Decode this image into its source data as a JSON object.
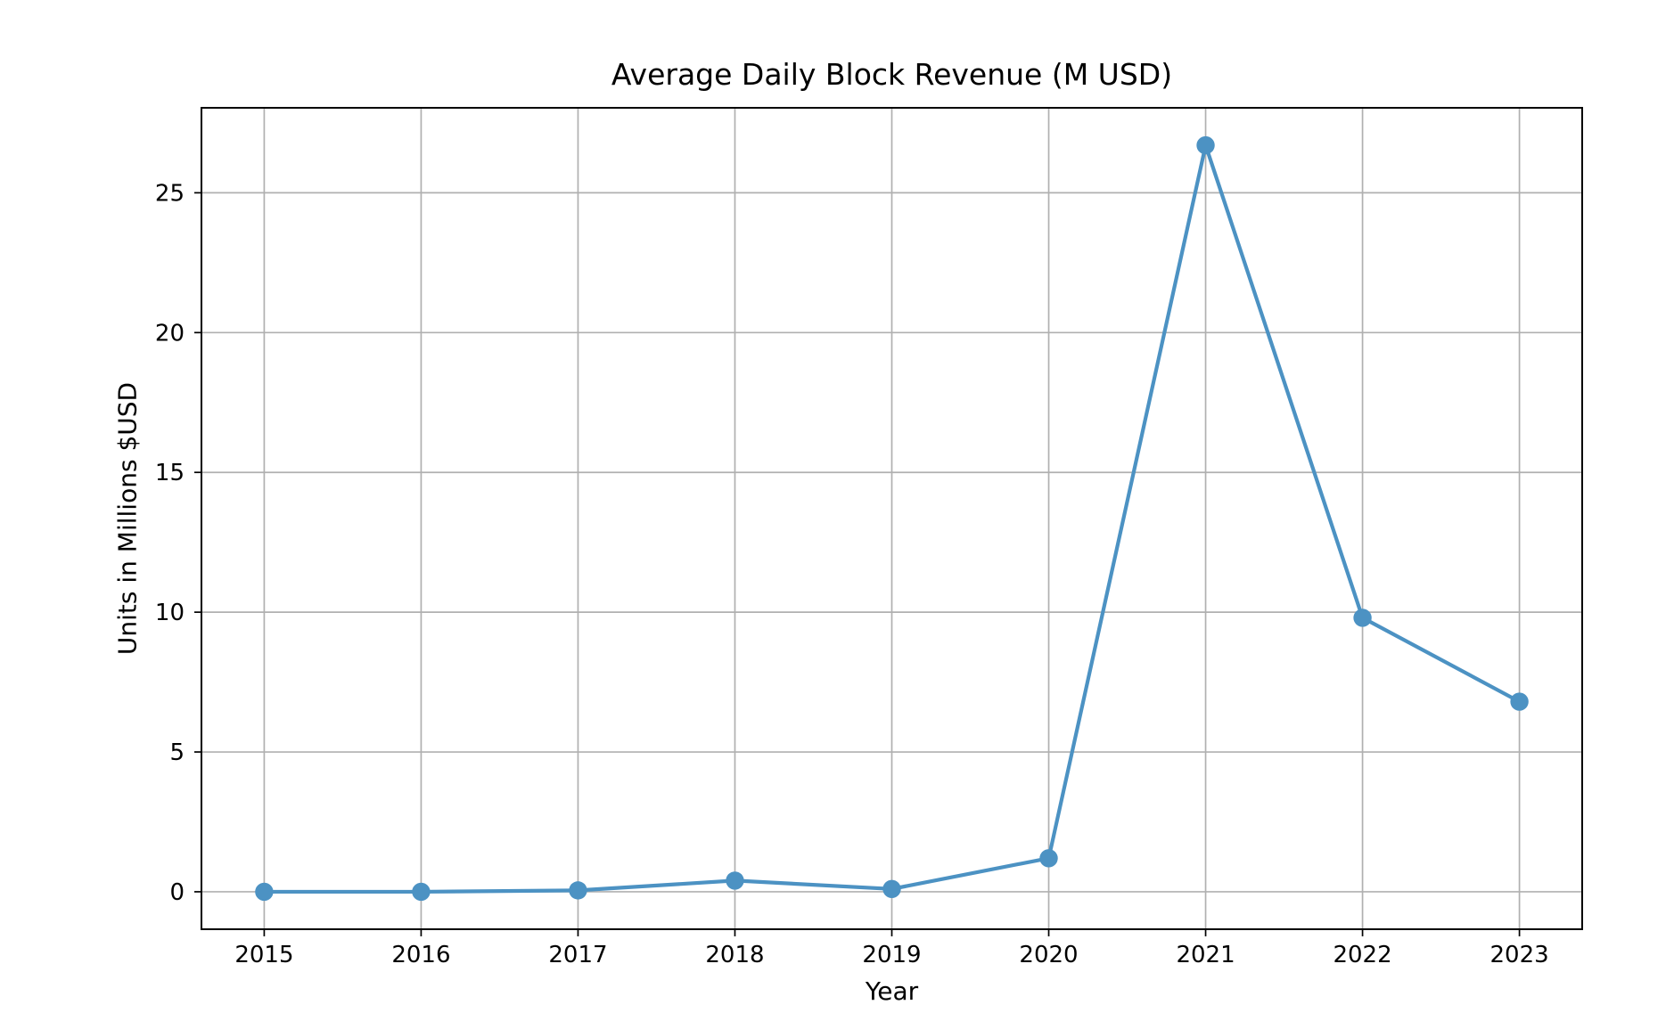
{
  "chart_data": {
    "type": "line",
    "title": "Average Daily Block Revenue (M USD)",
    "xlabel": "Year",
    "ylabel": "Units in Millions $USD",
    "categories": [
      2015,
      2016,
      2017,
      2018,
      2019,
      2020,
      2021,
      2022,
      2023
    ],
    "series": [
      {
        "name": "Average Daily Block Revenue",
        "values": [
          0.0,
          0.0,
          0.05,
          0.4,
          0.1,
          1.2,
          26.7,
          9.8,
          6.8
        ]
      }
    ],
    "yticks": [
      0,
      5,
      10,
      15,
      20,
      25
    ],
    "xlim": [
      2014.6,
      2023.4
    ],
    "ylim": [
      -1.34,
      28.04
    ],
    "grid": true,
    "legend_position": "none",
    "marker": "circle",
    "line_color": "#4c92c3",
    "grid_color": "#b0b0b0",
    "axis_color": "#000000",
    "background_color": "#ffffff"
  }
}
